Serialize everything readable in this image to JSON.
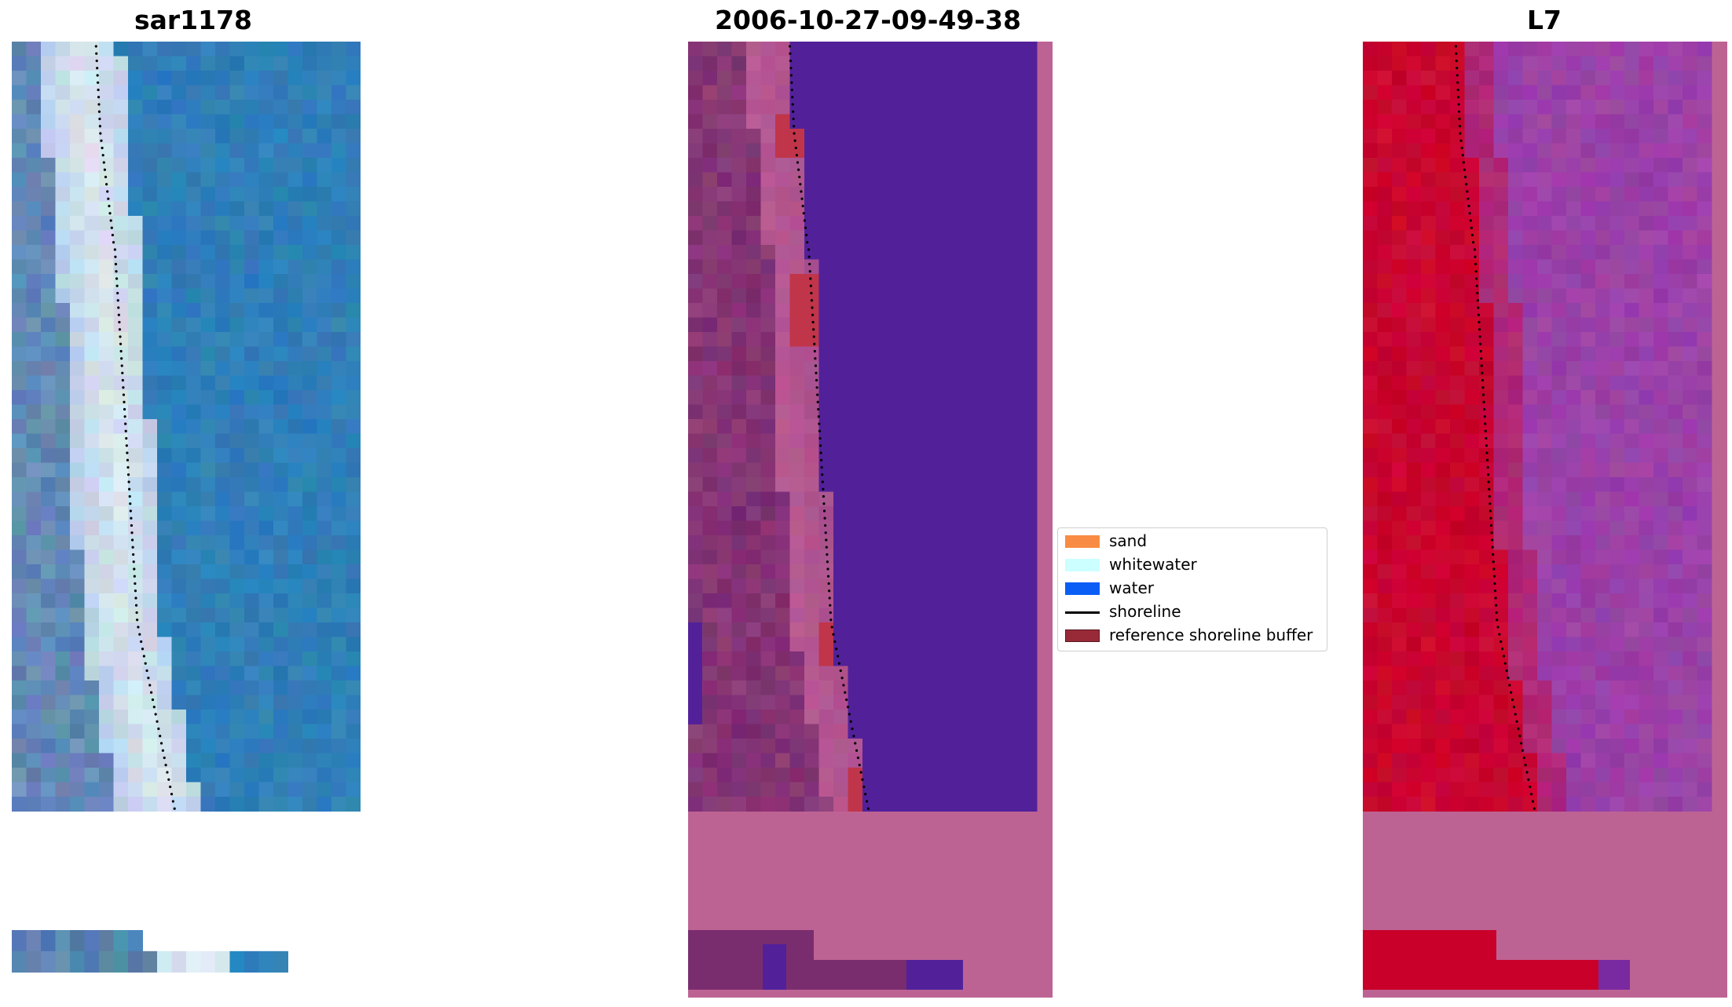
{
  "panels": [
    {
      "title": "sar1178",
      "kind": "rgb"
    },
    {
      "title": "2006-10-27-09-49-38",
      "kind": "classification"
    },
    {
      "title": "L7",
      "kind": "false-color"
    }
  ],
  "legend": {
    "items": [
      {
        "label": "sand",
        "type": "patch",
        "color": "#f98c44"
      },
      {
        "label": "whitewater",
        "type": "patch",
        "color": "#ccffff"
      },
      {
        "label": "water",
        "type": "patch",
        "color": "#0a5ef5"
      },
      {
        "label": "shoreline",
        "type": "line",
        "color": "#000000"
      },
      {
        "label": "reference shoreline buffer",
        "type": "patch",
        "color": "#982a37"
      }
    ]
  },
  "colors": {
    "rgb_land": "#5b84b0",
    "rgb_whitewater": "#dce6ee",
    "rgb_water": "#2f7fb8",
    "class_land": "#7a2d6e",
    "class_sand_overlay": "#b95a94",
    "class_water": "#52219a",
    "class_buffer": "#c0354a",
    "class_nodata": "#bd6393",
    "fc_land": "#c8002a",
    "fc_water": "#9f43a8",
    "fc_nodata": "#bd6393",
    "shoreline": "#000000"
  }
}
